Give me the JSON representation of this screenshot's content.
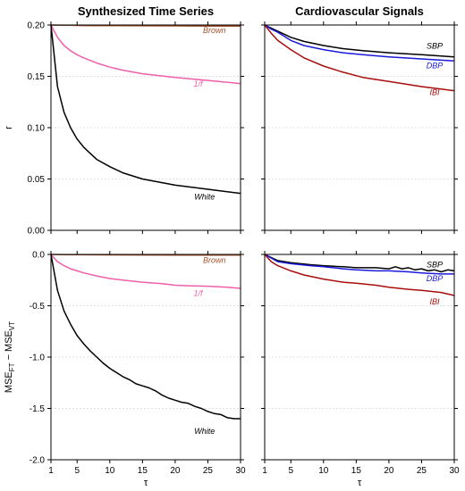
{
  "chart_data": [
    {
      "type": "line",
      "title": "Synthesized Time Series",
      "ylabel": "r",
      "xlabel": "",
      "xlim": [
        1,
        30
      ],
      "ylim": [
        0,
        0.2
      ],
      "xticks": [
        1,
        5,
        10,
        15,
        20,
        25,
        30
      ],
      "yticks": [
        "0.00",
        "0.05",
        "0.10",
        "0.15",
        "0.20"
      ],
      "reference_line": 0.2,
      "grid": "horizontal dotted",
      "series": [
        {
          "name": "Brown",
          "color": "#a0522d",
          "label_at": [
            26,
            0.195
          ],
          "x": [
            1,
            2,
            3,
            4,
            5,
            6,
            8,
            10,
            12,
            15,
            20,
            25,
            30
          ],
          "y": [
            0.2,
            0.1999,
            0.1998,
            0.1997,
            0.1996,
            0.1995,
            0.1994,
            0.1993,
            0.1993,
            0.1992,
            0.1991,
            0.199,
            0.199
          ]
        },
        {
          "name": "1/f",
          "color": "#ee5faa",
          "label_at": [
            23.5,
            0.1425
          ],
          "x": [
            1,
            2,
            3,
            4,
            5,
            6,
            8,
            10,
            12,
            15,
            20,
            25,
            30
          ],
          "y": [
            0.2,
            0.188,
            0.18,
            0.175,
            0.171,
            0.168,
            0.163,
            0.159,
            0.156,
            0.1525,
            0.149,
            0.146,
            0.143
          ]
        },
        {
          "name": "White",
          "color": "#000000",
          "label_at": [
            24.5,
            0.0325
          ],
          "x": [
            1,
            2,
            3,
            4,
            5,
            6,
            7,
            8,
            10,
            12,
            15,
            20,
            25,
            30
          ],
          "y": [
            0.2,
            0.14,
            0.115,
            0.1,
            0.089,
            0.081,
            0.075,
            0.069,
            0.062,
            0.056,
            0.05,
            0.044,
            0.04,
            0.036
          ]
        }
      ]
    },
    {
      "type": "line",
      "title": "Cardiovascular Signals",
      "ylabel": "",
      "xlabel": "",
      "xlim": [
        1,
        30
      ],
      "ylim": [
        0,
        0.2
      ],
      "xticks": [
        1,
        5,
        10,
        15,
        20,
        25,
        30
      ],
      "reference_line": 0.2,
      "grid": "horizontal dotted",
      "series": [
        {
          "name": "SBP",
          "color": "#000000",
          "label_at": [
            27,
            0.1795
          ],
          "x": [
            1,
            2,
            3,
            5,
            7,
            10,
            13,
            16,
            20,
            25,
            30
          ],
          "y": [
            0.2,
            0.197,
            0.194,
            0.188,
            0.184,
            0.18,
            0.177,
            0.175,
            0.173,
            0.171,
            0.169
          ]
        },
        {
          "name": "DBP",
          "color": "#1a1adb",
          "label_at": [
            27,
            0.1605
          ],
          "x": [
            1,
            2,
            3,
            5,
            7,
            10,
            13,
            16,
            20,
            25,
            30
          ],
          "y": [
            0.2,
            0.196,
            0.193,
            0.185,
            0.18,
            0.176,
            0.173,
            0.171,
            0.169,
            0.167,
            0.165
          ]
        },
        {
          "name": "IBI",
          "color": "#a80d0d",
          "label_at": [
            27,
            0.1345
          ],
          "x": [
            1,
            2,
            3,
            5,
            7,
            10,
            13,
            16,
            20,
            25,
            30
          ],
          "y": [
            0.2,
            0.192,
            0.185,
            0.176,
            0.168,
            0.16,
            0.154,
            0.149,
            0.145,
            0.14,
            0.136
          ]
        }
      ]
    },
    {
      "type": "line",
      "title": "",
      "ylabel": "MSE",
      "ylabel_sub1": "FT",
      "ylabel_mid": " − MSE",
      "ylabel_sub2": "VT",
      "xlabel": "τ",
      "xlim": [
        1,
        30
      ],
      "ylim": [
        -2.0,
        0.0
      ],
      "xticks": [
        1,
        5,
        10,
        15,
        20,
        25,
        30
      ],
      "yticks": [
        "-2.0",
        "-1.5",
        "-1.0",
        "-0.5",
        "0.0"
      ],
      "reference_line": 0.0,
      "grid": "horizontal dotted",
      "series": [
        {
          "name": "Brown",
          "color": "#a0522d",
          "label_at": [
            26,
            -0.055
          ],
          "x": [
            1,
            3,
            5,
            10,
            15,
            20,
            25,
            30
          ],
          "y": [
            0,
            -0.002,
            -0.003,
            -0.004,
            -0.005,
            -0.006,
            -0.007,
            -0.007
          ]
        },
        {
          "name": "1/f",
          "color": "#ee5faa",
          "label_at": [
            23.5,
            -0.38
          ],
          "x": [
            1,
            2,
            3,
            4,
            5,
            6,
            8,
            10,
            12,
            15,
            18,
            20,
            22,
            25,
            28,
            30
          ],
          "y": [
            0,
            -0.07,
            -0.11,
            -0.14,
            -0.16,
            -0.18,
            -0.21,
            -0.235,
            -0.25,
            -0.27,
            -0.285,
            -0.3,
            -0.305,
            -0.31,
            -0.32,
            -0.33
          ]
        },
        {
          "name": "White",
          "color": "#000000",
          "label_at": [
            24.5,
            -1.72
          ],
          "x": [
            1,
            2,
            3,
            4,
            5,
            6,
            7,
            8,
            9,
            10,
            11,
            12,
            13,
            14,
            15,
            16,
            17,
            18,
            19,
            20,
            21,
            22,
            23,
            24,
            25,
            26,
            27,
            28,
            29,
            30
          ],
          "y": [
            0,
            -0.35,
            -0.55,
            -0.68,
            -0.79,
            -0.87,
            -0.94,
            -1.0,
            -1.06,
            -1.11,
            -1.15,
            -1.19,
            -1.22,
            -1.26,
            -1.28,
            -1.3,
            -1.33,
            -1.37,
            -1.4,
            -1.42,
            -1.44,
            -1.45,
            -1.48,
            -1.5,
            -1.53,
            -1.55,
            -1.56,
            -1.59,
            -1.6,
            -1.6
          ]
        }
      ]
    },
    {
      "type": "line",
      "title": "",
      "ylabel": "",
      "xlabel": "τ",
      "xlim": [
        1,
        30
      ],
      "ylim": [
        -2.0,
        0.0
      ],
      "xticks": [
        1,
        5,
        10,
        15,
        20,
        25,
        30
      ],
      "reference_line": 0.0,
      "grid": "horizontal dotted",
      "series": [
        {
          "name": "SBP",
          "color": "#000000",
          "label_at": [
            27,
            -0.1
          ],
          "x": [
            1,
            3,
            5,
            8,
            10,
            13,
            15,
            18,
            20,
            21,
            22,
            23,
            24,
            25,
            26,
            27,
            28,
            29,
            30
          ],
          "y": [
            0,
            -0.06,
            -0.08,
            -0.1,
            -0.11,
            -0.12,
            -0.13,
            -0.13,
            -0.14,
            -0.12,
            -0.14,
            -0.13,
            -0.15,
            -0.14,
            -0.16,
            -0.15,
            -0.17,
            -0.15,
            -0.16
          ]
        },
        {
          "name": "DBP",
          "color": "#1a1adb",
          "label_at": [
            27,
            -0.235
          ],
          "x": [
            1,
            3,
            5,
            8,
            10,
            13,
            15,
            18,
            20,
            23,
            25,
            28,
            30
          ],
          "y": [
            0,
            -0.07,
            -0.09,
            -0.11,
            -0.12,
            -0.14,
            -0.15,
            -0.16,
            -0.16,
            -0.17,
            -0.18,
            -0.19,
            -0.19
          ]
        },
        {
          "name": "IBI",
          "color": "#a80d0d",
          "label_at": [
            27,
            -0.46
          ],
          "x": [
            1,
            2,
            3,
            5,
            7,
            10,
            13,
            15,
            18,
            20,
            23,
            25,
            28,
            30
          ],
          "y": [
            0,
            -0.07,
            -0.11,
            -0.16,
            -0.2,
            -0.24,
            -0.27,
            -0.28,
            -0.3,
            -0.32,
            -0.34,
            -0.35,
            -0.37,
            -0.4
          ]
        }
      ]
    }
  ]
}
